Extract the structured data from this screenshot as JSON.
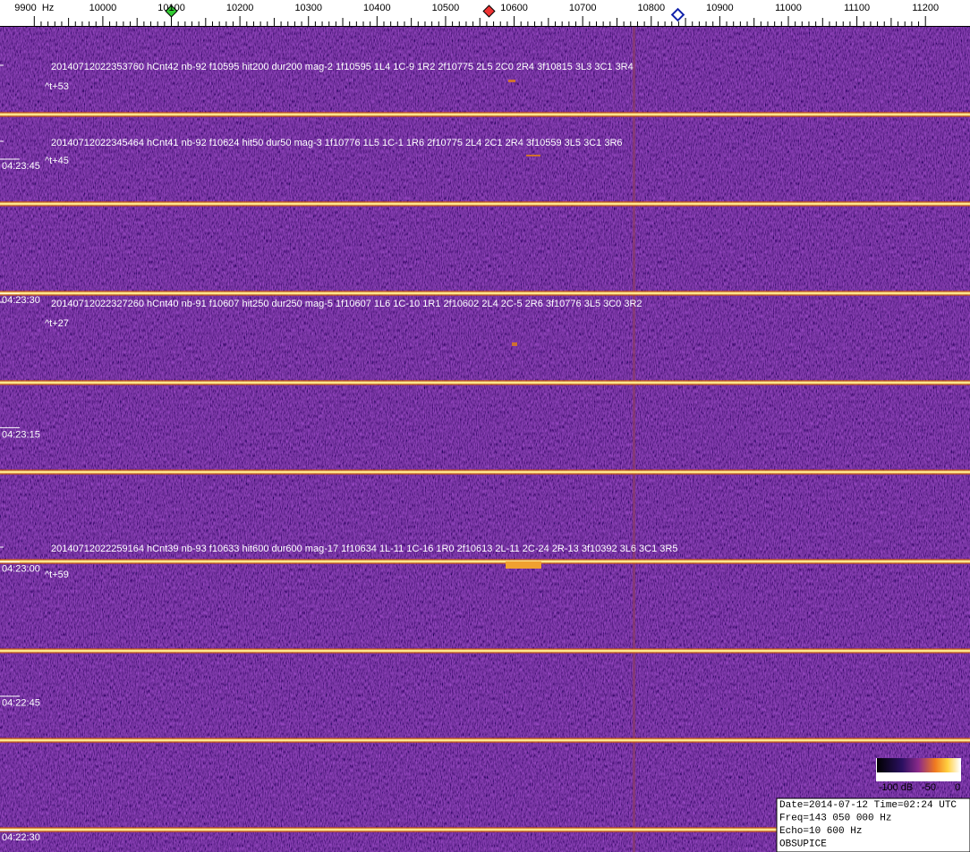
{
  "frequency_axis": {
    "xlim": [
      9850,
      11265
    ],
    "ticks": [
      {
        "value": 9900,
        "label": "9900  Hz"
      },
      10000,
      10100,
      10200,
      10300,
      10400,
      10500,
      10600,
      10700,
      10800,
      10900,
      11000,
      11100,
      11200
    ]
  },
  "time_labels": [
    "04:23:45",
    "04:23:30",
    "04:23:15",
    "04:23:00",
    "04:22:45",
    "04:22:30"
  ],
  "detections": [
    {
      "text": "20140712022353760 hCnt42 nb-92 f10595 hit200 dur200 mag-2 1f10595 1L4 1C-9 1R2 2f10775 2L5 2C0 2R4 3f10815 3L3 3C1 3R4",
      "offset": "^t+53"
    },
    {
      "text": "20140712022345464 hCnt41 nb-92 f10624 hit50 dur50 mag-3 1f10776 1L5 1C-1 1R6 2f10775 2L4 2C1 2R4 3f10559 3L5 3C1 3R6",
      "offset": "^t+45"
    },
    {
      "text": "20140712022327260 hCnt40 nb-91 f10607 hit250 dur250 mag-5 1f10607 1L6 1C-10 1R1 2f10602 2L4 2C-5 2R6 3f10776 3L5 3C0 3R2",
      "offset": "^t+27"
    },
    {
      "text": "20140712022259164 hCnt39 nb-93 f10633 hit600 dur600 mag-17 1f10634 1L-11 1C-16 1R0 2f10613 2L-11 2C-24 2R-13 3f10392 3L6 3C1 3R5",
      "offset": "^t+59"
    }
  ],
  "colorbar": {
    "labels": [
      "-100 dB",
      "-50",
      "0"
    ]
  },
  "info": [
    "Date=2014-07-12 Time=02:24 UTC",
    "Freq=143 050 000 Hz",
    "Echo=10 600 Hz",
    "OBSUPICE"
  ]
}
